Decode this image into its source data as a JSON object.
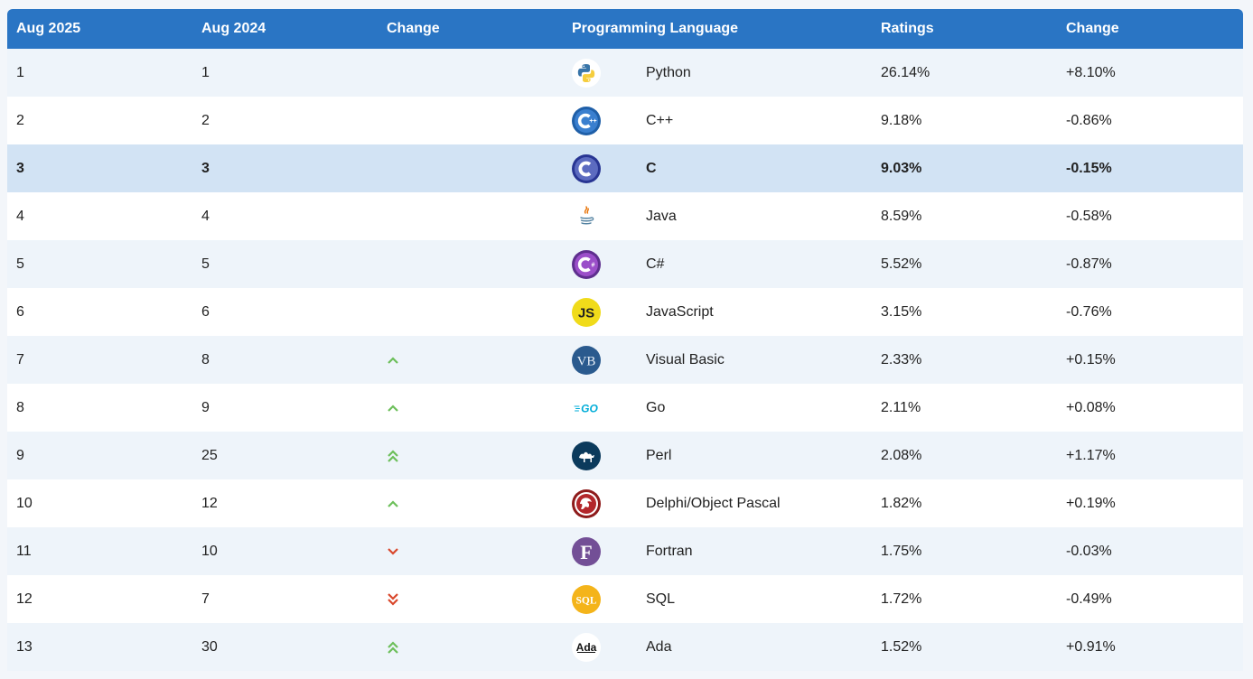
{
  "columns": [
    "Aug 2025",
    "Aug 2024",
    "Change",
    "Programming Language",
    "Ratings",
    "Change"
  ],
  "rows": [
    {
      "rank": "1",
      "prev": "1",
      "trend": "none",
      "icon": "python-logo-icon",
      "language": "Python",
      "rating": "26.14%",
      "change": "+8.10%"
    },
    {
      "rank": "2",
      "prev": "2",
      "trend": "none",
      "icon": "cpp-logo-icon",
      "language": "C++",
      "rating": "9.18%",
      "change": "-0.86%"
    },
    {
      "rank": "3",
      "prev": "3",
      "trend": "none",
      "icon": "c-logo-icon",
      "language": "C",
      "rating": "9.03%",
      "change": "-0.15%",
      "highlight": true
    },
    {
      "rank": "4",
      "prev": "4",
      "trend": "none",
      "icon": "java-logo-icon",
      "language": "Java",
      "rating": "8.59%",
      "change": "-0.58%"
    },
    {
      "rank": "5",
      "prev": "5",
      "trend": "none",
      "icon": "csharp-logo-icon",
      "language": "C#",
      "rating": "5.52%",
      "change": "-0.87%"
    },
    {
      "rank": "6",
      "prev": "6",
      "trend": "none",
      "icon": "javascript-logo-icon",
      "language": "JavaScript",
      "rating": "3.15%",
      "change": "-0.76%"
    },
    {
      "rank": "7",
      "prev": "8",
      "trend": "up",
      "icon": "visual-basic-logo-icon",
      "language": "Visual Basic",
      "rating": "2.33%",
      "change": "+0.15%"
    },
    {
      "rank": "8",
      "prev": "9",
      "trend": "up",
      "icon": "go-logo-icon",
      "language": "Go",
      "rating": "2.11%",
      "change": "+0.08%"
    },
    {
      "rank": "9",
      "prev": "25",
      "trend": "up2",
      "icon": "perl-logo-icon",
      "language": "Perl",
      "rating": "2.08%",
      "change": "+1.17%"
    },
    {
      "rank": "10",
      "prev": "12",
      "trend": "up",
      "icon": "delphi-logo-icon",
      "language": "Delphi/Object Pascal",
      "rating": "1.82%",
      "change": "+0.19%"
    },
    {
      "rank": "11",
      "prev": "10",
      "trend": "down",
      "icon": "fortran-logo-icon",
      "language": "Fortran",
      "rating": "1.75%",
      "change": "-0.03%"
    },
    {
      "rank": "12",
      "prev": "7",
      "trend": "down2",
      "icon": "sql-logo-icon",
      "language": "SQL",
      "rating": "1.72%",
      "change": "-0.49%"
    },
    {
      "rank": "13",
      "prev": "30",
      "trend": "up2",
      "icon": "ada-logo-icon",
      "language": "Ada",
      "rating": "1.52%",
      "change": "+0.91%"
    }
  ],
  "colors": {
    "header": "#2a75c4",
    "row_alt": "#eef4fa",
    "row_highlight": "#d2e3f4",
    "trend_up": "#6cbf5a",
    "trend_down": "#d9472b"
  },
  "logo_text": {
    "javascript": "JS",
    "visual_basic": "VB",
    "go": "GO",
    "fortran": "F",
    "sql": "SQL",
    "ada": "Ada"
  }
}
